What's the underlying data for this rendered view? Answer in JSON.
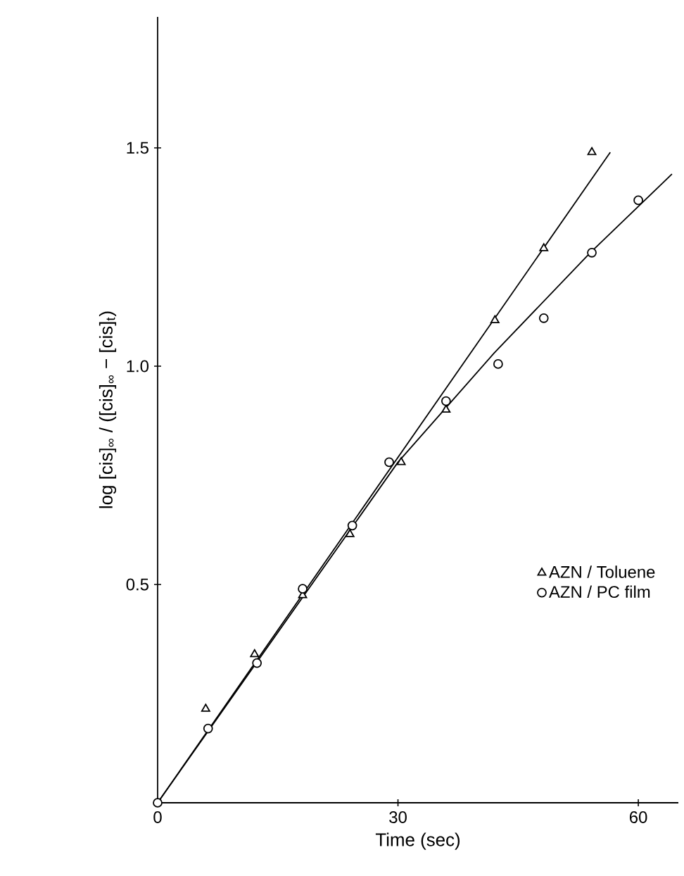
{
  "chart_data": {
    "type": "scatter",
    "xlabel": "Time (sec)",
    "ylabel": "log [cis]$_{∞}$ / ([cis]$_{∞}$ − [cis]$_{t}$)",
    "xlim": [
      0,
      65
    ],
    "ylim": [
      0,
      1.8
    ],
    "xticks": [
      0,
      30,
      60
    ],
    "yticks": [
      {
        "value": 0.5,
        "label": "0.5"
      },
      {
        "value": 1.0,
        "label": "1.0"
      },
      {
        "value": 1.5,
        "label": "1.5"
      }
    ],
    "legend": "right",
    "grid": false,
    "series": [
      {
        "name": "AZN / Toluene",
        "color": "#000000",
        "marker": "triangle",
        "x": [
          6.0,
          12.1,
          18.1,
          24.0,
          30.4,
          36.0,
          42.1,
          48.2,
          54.2
        ],
        "values": [
          0.215,
          0.34,
          0.475,
          0.615,
          0.78,
          0.9,
          1.105,
          1.27,
          1.49
        ]
      },
      {
        "name": "AZN / PC film",
        "color": "#000000",
        "marker": "circle",
        "x": [
          0,
          6.3,
          12.4,
          18.1,
          24.3,
          28.9,
          36.0,
          42.5,
          48.2,
          54.2,
          60.0
        ],
        "values": [
          0,
          0.17,
          0.32,
          0.49,
          0.635,
          0.78,
          0.92,
          1.005,
          1.11,
          1.26,
          1.38
        ]
      },
      {
        "type": "line",
        "color": "#000000",
        "marker": "none",
        "line_style": "solid",
        "x": [
          0,
          56.5
        ],
        "values": [
          0,
          1.49
        ]
      },
      {
        "type": "line",
        "color": "#000000",
        "marker": "none",
        "line_style": "solid",
        "x": [
          0,
          30,
          42,
          54,
          64.2
        ],
        "values": [
          0,
          0.78,
          1.03,
          1.26,
          1.44
        ]
      }
    ]
  }
}
